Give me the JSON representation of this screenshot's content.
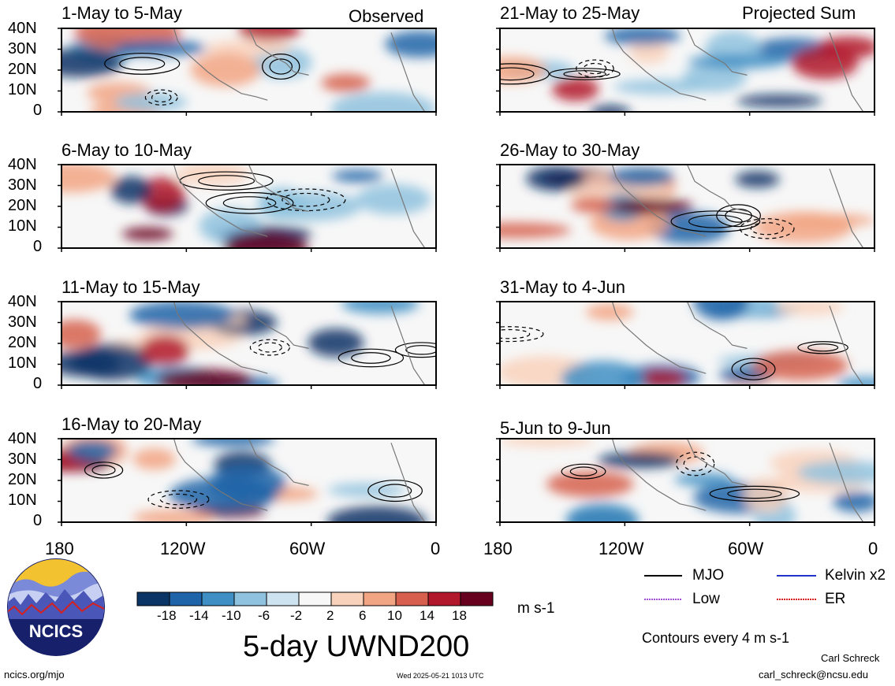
{
  "panels": [
    {
      "period": "1-May to 5-May",
      "tag": "Observed"
    },
    {
      "period": "6-May to 10-May",
      "tag": ""
    },
    {
      "period": "11-May to 15-May",
      "tag": ""
    },
    {
      "period": "16-May to 20-May",
      "tag": ""
    },
    {
      "period": "21-May to 25-May",
      "tag": "Projected Sum"
    },
    {
      "period": "26-May to 30-May",
      "tag": ""
    },
    {
      "period": "31-May to 4-Jun",
      "tag": ""
    },
    {
      "period": "5-Jun to 9-Jun",
      "tag": ""
    }
  ],
  "lat_labels": [
    "40N",
    "30N",
    "20N",
    "10N",
    "0"
  ],
  "lon_labels": [
    "180",
    "120W",
    "60W",
    "0"
  ],
  "colorbar": {
    "ticks": [
      "-18",
      "-14",
      "-10",
      "-6",
      "-2",
      "2",
      "6",
      "10",
      "14",
      "18"
    ],
    "colors": [
      "#0a3366",
      "#1f64a8",
      "#3f8fc4",
      "#8fc2de",
      "#cde3ef",
      "#f7f7f7",
      "#f9d2bc",
      "#f2a582",
      "#d6604d",
      "#b2182b",
      "#67001f"
    ],
    "units": "m s-1"
  },
  "legend": {
    "items": [
      {
        "label": "MJO",
        "color": "#000000"
      },
      {
        "label": "Kelvin x2",
        "color": "#2233cc"
      },
      {
        "label": "Low",
        "color": "#a24fd6"
      },
      {
        "label": "ER",
        "color": "#d62020"
      }
    ],
    "contour_note": "Contours every 4 m s-1"
  },
  "main_title": "5-day UWND200",
  "logo_text": "NCICS",
  "footer": {
    "url": "ncics.org/mjo",
    "timestamp": "Wed 2025-05-21 1013 UTC",
    "author": "Carl Schreck",
    "email": "carl_schreck@ncsu.edu"
  }
}
